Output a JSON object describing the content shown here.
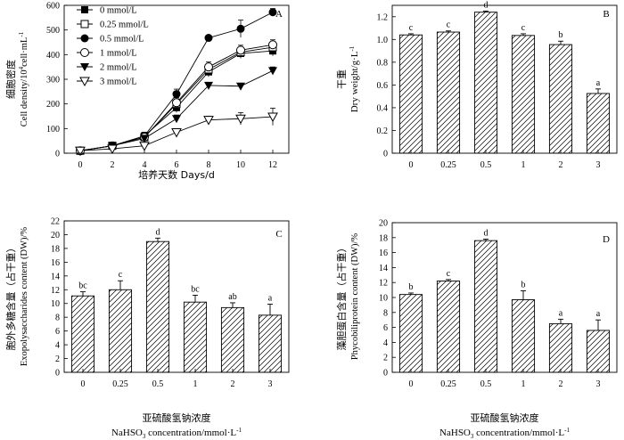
{
  "figure": {
    "x_label_cn": "亚硫酸氢钠浓度",
    "x_label_en": "NaHSO",
    "x_label_en_sub": "3",
    "x_label_en_tail": " concentration/mmol·L",
    "x_label_en_exp": "-1"
  },
  "chart_data": [
    {
      "panel": "A",
      "type": "line",
      "title": "A",
      "xlabel": "培养天数 Days/d",
      "ylabel_cn": "细胞密度",
      "ylabel_en": "Cell density/10",
      "ylabel_exp": "4",
      "ylabel_tail": "cell·mL",
      "ylabel_tail_exp": "-1",
      "x": [
        0,
        2,
        4,
        6,
        8,
        10,
        12
      ],
      "xlim": [
        -1,
        13
      ],
      "ylim": [
        0,
        600
      ],
      "yticks": [
        "0",
        "100",
        "200",
        "300",
        "400",
        "500",
        "600"
      ],
      "xticks": [
        "0",
        "2",
        "4",
        "6",
        "8",
        "10",
        "12"
      ],
      "series": [
        {
          "name": "0 mmol/L",
          "marker": "square",
          "values": [
            10,
            30,
            70,
            185,
            330,
            405,
            415
          ],
          "errors": [
            5,
            5,
            15,
            20,
            20,
            20,
            20
          ]
        },
        {
          "name": "0.25 mmol/L",
          "marker": "square-open",
          "values": [
            10,
            30,
            65,
            200,
            340,
            410,
            430
          ],
          "errors": [
            5,
            5,
            15,
            20,
            20,
            20,
            20
          ]
        },
        {
          "name": "0.5 mmol/L",
          "marker": "circle",
          "values": [
            10,
            30,
            70,
            240,
            468,
            505,
            572
          ],
          "errors": [
            5,
            5,
            15,
            20,
            10,
            35,
            15
          ]
        },
        {
          "name": "1 mmol/L",
          "marker": "circle-open",
          "values": [
            10,
            30,
            65,
            205,
            350,
            418,
            440
          ],
          "errors": [
            5,
            5,
            15,
            20,
            20,
            20,
            20
          ]
        },
        {
          "name": "2 mmol/L",
          "marker": "triangle-down",
          "values": [
            10,
            30,
            60,
            140,
            275,
            272,
            335
          ],
          "errors": [
            5,
            5,
            15,
            15,
            10,
            10,
            15
          ]
        },
        {
          "name": "3 mmol/L",
          "marker": "triangle-down-open",
          "values": [
            10,
            18,
            30,
            85,
            135,
            140,
            148
          ],
          "errors": [
            5,
            5,
            10,
            15,
            15,
            25,
            35
          ]
        }
      ]
    },
    {
      "panel": "B",
      "type": "bar",
      "title": "B",
      "ylabel_cn": "干重",
      "ylabel_en": "Dry weight/g·L",
      "ylabel_exp": "-1",
      "categories": [
        "0",
        "0.25",
        "0.5",
        "1",
        "2",
        "3"
      ],
      "values": [
        1.04,
        1.065,
        1.24,
        1.035,
        0.955,
        0.525
      ],
      "errors": [
        0.01,
        0.01,
        0.01,
        0.015,
        0.03,
        0.04
      ],
      "labels": [
        "c",
        "c",
        "d",
        "c",
        "b",
        "a"
      ],
      "ylim": [
        0,
        1.3
      ],
      "yticks": [
        "0",
        "0.2",
        "0.4",
        "0.6",
        "0.8",
        "1.0",
        "1.2"
      ]
    },
    {
      "panel": "C",
      "type": "bar",
      "title": "C",
      "ylabel_cn": "胞外多糖含量（占干重）",
      "ylabel_en": "Exopolysaccharides content (DW)/%",
      "categories": [
        "0",
        "0.25",
        "0.5",
        "1",
        "2",
        "3"
      ],
      "values": [
        11.1,
        12.0,
        19.0,
        10.2,
        9.4,
        8.3
      ],
      "errors": [
        0.6,
        1.3,
        0.5,
        1.0,
        0.7,
        1.6
      ],
      "labels": [
        "bc",
        "c",
        "d",
        "bc",
        "ab",
        "a"
      ],
      "ylim": [
        0,
        22
      ],
      "yticks": [
        "0",
        "2",
        "4",
        "6",
        "8",
        "10",
        "12",
        "14",
        "16",
        "18",
        "20",
        "22"
      ]
    },
    {
      "panel": "D",
      "type": "bar",
      "title": "D",
      "ylabel_cn": "藻胆蛋白含量（占干重）",
      "ylabel_en": "Phycobiliprotein content (DW)/%",
      "categories": [
        "0",
        "0.25",
        "0.5",
        "1",
        "2",
        "3"
      ],
      "values": [
        10.4,
        12.2,
        17.6,
        9.7,
        6.5,
        5.6
      ],
      "errors": [
        0.2,
        0.2,
        0.2,
        1.2,
        0.6,
        1.4
      ],
      "labels": [
        "b",
        "c",
        "d",
        "b",
        "a",
        "a"
      ],
      "ylim": [
        0,
        20
      ],
      "yticks": [
        "0",
        "2",
        "4",
        "6",
        "8",
        "10",
        "12",
        "14",
        "16",
        "18",
        "20"
      ]
    }
  ]
}
